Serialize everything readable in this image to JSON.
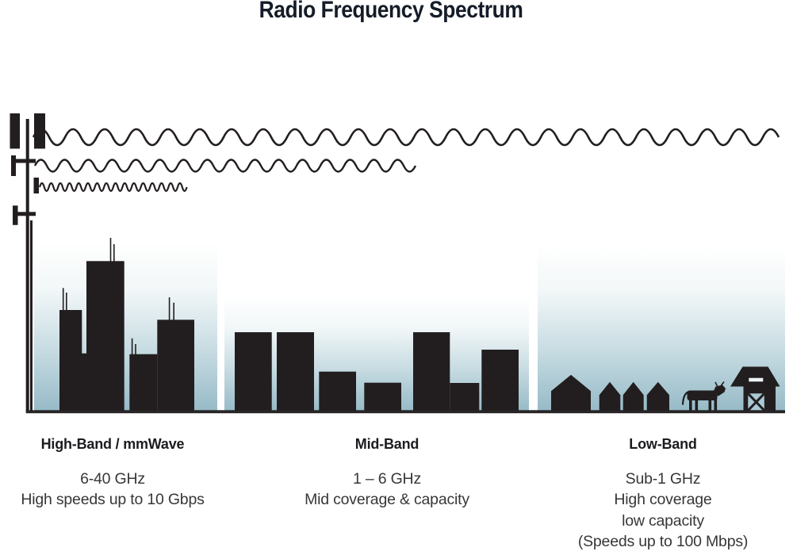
{
  "title": "Radio Frequency Spectrum",
  "bands": [
    {
      "name": "High-Band / mmWave",
      "details": [
        "6-40 GHz",
        "High speeds up to 10 Gbps"
      ]
    },
    {
      "name": "Mid-Band",
      "details": [
        "1 – 6 GHz",
        "Mid coverage & capacity"
      ]
    },
    {
      "name": "Low-Band",
      "details": [
        "Sub-1 GHz",
        "High coverage",
        "low capacity",
        "(Speeds up to 100 Mbps)"
      ]
    }
  ],
  "icons": {
    "tower": "cell-tower-icon",
    "low_frequency_wave": "low-frequency-wave-icon",
    "mid_frequency_wave": "mid-frequency-wave-icon",
    "high_frequency_wave": "high-frequency-wave-icon",
    "city_skyline": "city-skyline-icon",
    "town_skyline": "town-skyline-icon",
    "house": "house-icon",
    "cow": "cow-icon",
    "barn": "barn-icon"
  },
  "colors": {
    "ink": "#221e1f",
    "title_text": "#151c28",
    "body_text": "#373737",
    "sky_top": "#ffffff",
    "sky_bottom": "#96bac7"
  }
}
